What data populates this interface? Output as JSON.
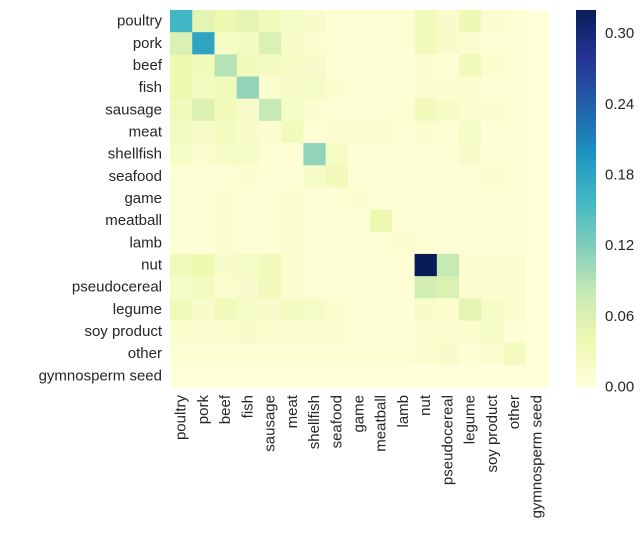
{
  "chart_data": {
    "type": "heatmap",
    "title": "",
    "xlabel": "",
    "ylabel": "",
    "categories": [
      "poultry",
      "pork",
      "beef",
      "fish",
      "sausage",
      "meat",
      "shellfish",
      "seafood",
      "game",
      "meatball",
      "lamb",
      "nut",
      "pseudocereal",
      "legume",
      "soy product",
      "other",
      "gymnosperm seed"
    ],
    "colormap": "YlGnBu",
    "color_stops": [
      "#ffffd9",
      "#edf8b1",
      "#c7e9b4",
      "#7fcdbb",
      "#41b6c4",
      "#1d91c0",
      "#225ea8",
      "#253494",
      "#081d58"
    ],
    "vmin": 0,
    "vmax": 0.32,
    "colorbar_ticks": [
      0.0,
      0.06,
      0.12,
      0.18,
      0.24,
      0.3
    ],
    "colorbar_tick_labels": [
      "0.00",
      "0.06",
      "0.12",
      "0.18",
      "0.24",
      "0.30"
    ],
    "values": [
      [
        0.16,
        0.05,
        0.04,
        0.05,
        0.03,
        0.02,
        0.015,
        0.005,
        0.005,
        0.005,
        0.005,
        0.03,
        0.015,
        0.035,
        0.01,
        0.005,
        0.0
      ],
      [
        0.06,
        0.18,
        0.02,
        0.025,
        0.06,
        0.015,
        0.01,
        0.005,
        0.005,
        0.005,
        0.005,
        0.03,
        0.015,
        0.01,
        0.005,
        0.005,
        0.0
      ],
      [
        0.04,
        0.03,
        0.09,
        0.03,
        0.025,
        0.02,
        0.015,
        0.005,
        0.005,
        0.005,
        0.005,
        0.01,
        0.005,
        0.03,
        0.01,
        0.005,
        0.0
      ],
      [
        0.04,
        0.025,
        0.03,
        0.11,
        0.01,
        0.015,
        0.02,
        0.01,
        0.005,
        0.005,
        0.005,
        0.01,
        0.01,
        0.01,
        0.005,
        0.005,
        0.0
      ],
      [
        0.03,
        0.06,
        0.03,
        0.015,
        0.08,
        0.02,
        0.01,
        0.005,
        0.005,
        0.005,
        0.005,
        0.03,
        0.02,
        0.01,
        0.01,
        0.005,
        0.0
      ],
      [
        0.025,
        0.015,
        0.025,
        0.015,
        0.01,
        0.03,
        0.005,
        0.01,
        0.01,
        0.01,
        0.005,
        0.01,
        0.005,
        0.02,
        0.005,
        0.005,
        0.0
      ],
      [
        0.02,
        0.01,
        0.02,
        0.02,
        0.005,
        0.005,
        0.11,
        0.02,
        0.005,
        0.005,
        0.005,
        0.005,
        0.005,
        0.015,
        0.005,
        0.005,
        0.0
      ],
      [
        0.005,
        0.005,
        0.005,
        0.01,
        0.005,
        0.005,
        0.02,
        0.03,
        0.005,
        0.005,
        0.005,
        0.005,
        0.005,
        0.005,
        0.01,
        0.005,
        0.0
      ],
      [
        0.005,
        0.005,
        0.01,
        0.005,
        0.005,
        0.01,
        0.005,
        0.005,
        0.01,
        0.005,
        0.005,
        0.005,
        0.005,
        0.005,
        0.005,
        0.005,
        0.0
      ],
      [
        0.005,
        0.005,
        0.01,
        0.005,
        0.005,
        0.01,
        0.005,
        0.005,
        0.005,
        0.04,
        0.005,
        0.005,
        0.005,
        0.005,
        0.005,
        0.005,
        0.0
      ],
      [
        0.005,
        0.005,
        0.01,
        0.005,
        0.005,
        0.01,
        0.005,
        0.005,
        0.005,
        0.005,
        0.01,
        0.005,
        0.005,
        0.005,
        0.005,
        0.005,
        0.0
      ],
      [
        0.03,
        0.04,
        0.015,
        0.02,
        0.03,
        0.01,
        0.005,
        0.005,
        0.005,
        0.005,
        0.005,
        0.32,
        0.08,
        0.01,
        0.01,
        0.01,
        0.0
      ],
      [
        0.02,
        0.025,
        0.01,
        0.015,
        0.03,
        0.01,
        0.005,
        0.005,
        0.005,
        0.005,
        0.005,
        0.07,
        0.06,
        0.01,
        0.01,
        0.01,
        0.0
      ],
      [
        0.03,
        0.015,
        0.03,
        0.02,
        0.015,
        0.025,
        0.02,
        0.01,
        0.005,
        0.005,
        0.005,
        0.015,
        0.01,
        0.05,
        0.02,
        0.01,
        0.0
      ],
      [
        0.01,
        0.01,
        0.01,
        0.015,
        0.01,
        0.01,
        0.01,
        0.01,
        0.005,
        0.005,
        0.005,
        0.01,
        0.01,
        0.01,
        0.02,
        0.005,
        0.0
      ],
      [
        0.005,
        0.005,
        0.005,
        0.005,
        0.005,
        0.005,
        0.005,
        0.005,
        0.005,
        0.005,
        0.005,
        0.01,
        0.015,
        0.005,
        0.01,
        0.025,
        0.0
      ],
      [
        0.0,
        0.0,
        0.0,
        0.0,
        0.0,
        0.0,
        0.0,
        0.0,
        0.0,
        0.0,
        0.0,
        0.0,
        0.0,
        0.0,
        0.0,
        0.0,
        0.0
      ]
    ]
  }
}
